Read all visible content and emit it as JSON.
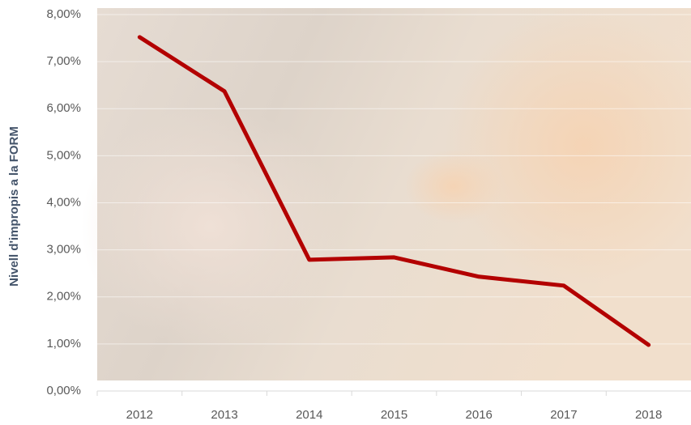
{
  "chart_data": {
    "type": "line",
    "y_label": "Nivell d'impropis a la FORM",
    "categories": [
      "2012",
      "2013",
      "2014",
      "2015",
      "2016",
      "2017",
      "2018"
    ],
    "series": [
      {
        "color": "#b30000",
        "values": [
          7.52,
          6.37,
          2.79,
          2.84,
          2.43,
          2.24,
          0.98
        ]
      }
    ],
    "ylim": [
      0,
      8
    ],
    "yticks": [
      {
        "value": 0,
        "label": "0,00%"
      },
      {
        "value": 1,
        "label": "1,00%"
      },
      {
        "value": 2,
        "label": "2,00%"
      },
      {
        "value": 3,
        "label": "3,00%"
      },
      {
        "value": 4,
        "label": "4,00%"
      },
      {
        "value": 5,
        "label": "5,00%"
      },
      {
        "value": 6,
        "label": "6,00%"
      },
      {
        "value": 7,
        "label": "7,00%"
      },
      {
        "value": 8,
        "label": "8,00%"
      }
    ],
    "grid": true
  }
}
